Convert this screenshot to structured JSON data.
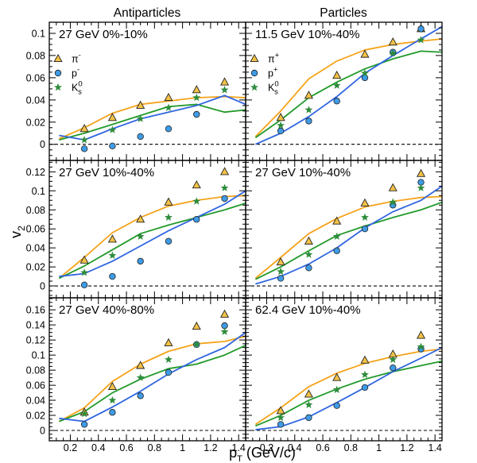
{
  "column_headers": [
    "Antiparticles",
    "Particles"
  ],
  "axis_titles": {
    "y": {
      "base": "v",
      "sub": "2"
    },
    "x": {
      "base": "p",
      "sub": "T",
      "rest": " (GeV/c)"
    }
  },
  "colors": {
    "triangle_fill": "#f3c246",
    "circle_fill": "#3e9be6",
    "star_fill": "#2e8c3c",
    "marker_stroke": "#222222",
    "zero_line": "#000000"
  },
  "chart_data": [
    {
      "type": "scatter",
      "title": "27 GeV 0%-10%",
      "xlim": [
        0.05,
        1.45
      ],
      "ylim": [
        -0.0145,
        0.11
      ],
      "yticks": [
        "0",
        "0.02",
        "0.04",
        "0.06",
        "0.08",
        "0.1"
      ],
      "legend": [
        {
          "marker": "triangle",
          "base": "π",
          "sup": "-"
        },
        {
          "marker": "circle",
          "base": "p",
          "sup": "-"
        },
        {
          "marker": "star",
          "base": "K",
          "sup": "0",
          "sub": "s"
        }
      ],
      "points": [
        {
          "marker": "triangle",
          "x": [
            0.3,
            0.5,
            0.7,
            0.9,
            1.1,
            1.3
          ],
          "y": [
            0.014,
            0.024,
            0.035,
            0.042,
            0.049,
            0.056
          ]
        },
        {
          "marker": "circle",
          "x": [
            0.3,
            0.5,
            0.7,
            0.9,
            1.1
          ],
          "y": [
            -0.004,
            -0.0015,
            0.007,
            0.014,
            0.027
          ]
        },
        {
          "marker": "star",
          "x": [
            0.3,
            0.5,
            0.7,
            0.9,
            1.1,
            1.3
          ],
          "y": [
            0.004,
            0.013,
            0.023,
            0.033,
            0.042,
            0.049
          ]
        }
      ],
      "curves": [
        {
          "color": "#f5a31a",
          "x": [
            0.12,
            0.3,
            0.5,
            0.7,
            0.9,
            1.1,
            1.3,
            1.45
          ],
          "y": [
            0.005,
            0.015,
            0.028,
            0.036,
            0.039,
            0.042,
            0.043,
            0.042
          ]
        },
        {
          "color": "#229a2a",
          "x": [
            0.12,
            0.3,
            0.5,
            0.7,
            0.9,
            1.1,
            1.3,
            1.45
          ],
          "y": [
            0.004,
            0.01,
            0.018,
            0.026,
            0.034,
            0.036,
            0.029,
            0.031
          ]
        },
        {
          "color": "#3066e0",
          "x": [
            0.12,
            0.3,
            0.5,
            0.7,
            0.9,
            1.1,
            1.3,
            1.45
          ],
          "y": [
            0.008,
            0.004,
            0.014,
            0.023,
            0.029,
            0.035,
            0.044,
            0.036
          ]
        }
      ]
    },
    {
      "type": "scatter",
      "title": "11.5 GeV 10%-40%",
      "xlim": [
        0.05,
        1.45
      ],
      "ylim": [
        -0.0145,
        0.11
      ],
      "legend": [
        {
          "marker": "triangle",
          "base": "π",
          "sup": "+"
        },
        {
          "marker": "circle",
          "base": "p",
          "sup": "+"
        },
        {
          "marker": "star",
          "base": "K",
          "sup": "0",
          "sub": "s"
        }
      ],
      "points": [
        {
          "marker": "triangle",
          "x": [
            0.3,
            0.5,
            0.7,
            0.9,
            1.1,
            1.3
          ],
          "y": [
            0.024,
            0.044,
            0.062,
            0.081,
            0.092,
            0.104
          ]
        },
        {
          "marker": "circle",
          "x": [
            0.3,
            0.5,
            0.7,
            0.9,
            1.1,
            1.3
          ],
          "y": [
            0.012,
            0.021,
            0.039,
            0.06,
            0.083,
            0.104
          ]
        },
        {
          "marker": "star",
          "x": [
            0.3,
            0.5,
            0.7,
            0.9,
            1.1,
            1.3
          ],
          "y": [
            0.017,
            0.031,
            0.053,
            0.064,
            0.082,
            0.094
          ]
        }
      ],
      "curves": [
        {
          "color": "#f5a31a",
          "x": [
            0.12,
            0.3,
            0.5,
            0.7,
            0.9,
            1.1,
            1.3,
            1.45
          ],
          "y": [
            0.007,
            0.03,
            0.059,
            0.075,
            0.085,
            0.09,
            0.093,
            0.095
          ]
        },
        {
          "color": "#229a2a",
          "x": [
            0.12,
            0.3,
            0.5,
            0.7,
            0.9,
            1.1,
            1.3,
            1.45
          ],
          "y": [
            0.006,
            0.022,
            0.042,
            0.056,
            0.068,
            0.077,
            0.084,
            0.083
          ]
        },
        {
          "color": "#3066e0",
          "x": [
            0.12,
            0.3,
            0.5,
            0.7,
            0.9,
            1.1,
            1.3,
            1.45
          ],
          "y": [
            0.0,
            0.01,
            0.025,
            0.043,
            0.064,
            0.08,
            0.095,
            0.106
          ]
        }
      ]
    },
    {
      "type": "scatter",
      "title": "27 GeV 10%-40%",
      "xlim": [
        0.05,
        1.45
      ],
      "ylim": [
        -0.0125,
        0.132
      ],
      "yticks": [
        "0",
        "0.02",
        "0.04",
        "0.06",
        "0.08",
        "0.1",
        "0.12"
      ],
      "points": [
        {
          "marker": "triangle",
          "x": [
            0.3,
            0.5,
            0.7,
            0.9,
            1.1,
            1.3
          ],
          "y": [
            0.027,
            0.049,
            0.07,
            0.088,
            0.106,
            0.12
          ]
        },
        {
          "marker": "circle",
          "x": [
            0.3,
            0.5,
            0.7,
            0.9,
            1.1,
            1.3
          ],
          "y": [
            0.001,
            0.01,
            0.026,
            0.047,
            0.07,
            0.092
          ]
        },
        {
          "marker": "star",
          "x": [
            0.3,
            0.5,
            0.7,
            0.9,
            1.1,
            1.3
          ],
          "y": [
            0.014,
            0.032,
            0.052,
            0.072,
            0.089,
            0.103
          ]
        }
      ],
      "curves": [
        {
          "color": "#f5a31a",
          "x": [
            0.12,
            0.3,
            0.5,
            0.7,
            0.9,
            1.1,
            1.3,
            1.45
          ],
          "y": [
            0.008,
            0.03,
            0.056,
            0.072,
            0.084,
            0.09,
            0.094,
            0.095
          ]
        },
        {
          "color": "#229a2a",
          "x": [
            0.12,
            0.3,
            0.5,
            0.7,
            0.9,
            1.1,
            1.3,
            1.45
          ],
          "y": [
            0.008,
            0.021,
            0.038,
            0.055,
            0.064,
            0.072,
            0.08,
            0.087
          ]
        },
        {
          "color": "#3066e0",
          "x": [
            0.12,
            0.3,
            0.5,
            0.7,
            0.9,
            1.1,
            1.3,
            1.45
          ],
          "y": [
            0.01,
            0.013,
            0.026,
            0.042,
            0.058,
            0.072,
            0.086,
            0.1
          ]
        }
      ]
    },
    {
      "type": "scatter",
      "title": "27 GeV 10%-40%",
      "xlim": [
        0.05,
        1.45
      ],
      "ylim": [
        -0.0125,
        0.132
      ],
      "points": [
        {
          "marker": "triangle",
          "x": [
            0.3,
            0.5,
            0.7,
            0.9,
            1.1,
            1.3
          ],
          "y": [
            0.025,
            0.047,
            0.068,
            0.087,
            0.103,
            0.118
          ]
        },
        {
          "marker": "circle",
          "x": [
            0.3,
            0.5,
            0.7,
            0.9,
            1.1,
            1.3
          ],
          "y": [
            0.008,
            0.019,
            0.037,
            0.06,
            0.085,
            0.109
          ]
        },
        {
          "marker": "star",
          "x": [
            0.3,
            0.5,
            0.7,
            0.9,
            1.1,
            1.3
          ],
          "y": [
            0.015,
            0.033,
            0.052,
            0.072,
            0.088,
            0.103
          ]
        }
      ],
      "curves": [
        {
          "color": "#f5a31a",
          "x": [
            0.12,
            0.3,
            0.5,
            0.7,
            0.9,
            1.1,
            1.3,
            1.45
          ],
          "y": [
            0.008,
            0.03,
            0.055,
            0.071,
            0.083,
            0.089,
            0.093,
            0.094
          ]
        },
        {
          "color": "#229a2a",
          "x": [
            0.12,
            0.3,
            0.5,
            0.7,
            0.9,
            1.1,
            1.3,
            1.45
          ],
          "y": [
            0.007,
            0.02,
            0.037,
            0.053,
            0.063,
            0.072,
            0.08,
            0.088
          ]
        },
        {
          "color": "#3066e0",
          "x": [
            0.12,
            0.3,
            0.5,
            0.7,
            0.9,
            1.1,
            1.3,
            1.45
          ],
          "y": [
            0.002,
            0.01,
            0.023,
            0.04,
            0.061,
            0.078,
            0.09,
            0.105
          ]
        }
      ]
    },
    {
      "type": "scatter",
      "title": "27 GeV 40%-80%",
      "xlim": [
        0.05,
        1.45
      ],
      "ylim": [
        -0.0137,
        0.176
      ],
      "yticks": [
        "0",
        "0.02",
        "0.04",
        "0.06",
        "0.08",
        "0.1",
        "0.12",
        "0.14",
        "0.16"
      ],
      "xticks": [
        "0.2",
        "0.4",
        "0.6",
        "0.8",
        "1",
        "1.2",
        "1.4"
      ],
      "points": [
        {
          "marker": "triangle",
          "x": [
            0.3,
            0.5,
            0.7,
            0.9,
            1.1,
            1.3
          ],
          "y": [
            0.024,
            0.058,
            0.086,
            0.116,
            0.138,
            0.154
          ]
        },
        {
          "marker": "circle",
          "x": [
            0.3,
            0.5,
            0.7,
            0.9,
            1.1,
            1.3
          ],
          "y": [
            0.008,
            0.024,
            0.046,
            0.077,
            0.114,
            0.139
          ]
        },
        {
          "marker": "star",
          "x": [
            0.3,
            0.5,
            0.7,
            0.9,
            1.1,
            1.3
          ],
          "y": [
            0.022,
            0.04,
            0.07,
            0.094,
            0.114,
            0.131
          ]
        }
      ],
      "curves": [
        {
          "color": "#f5a31a",
          "x": [
            0.12,
            0.3,
            0.5,
            0.7,
            0.9,
            1.1,
            1.3,
            1.45
          ],
          "y": [
            0.012,
            0.03,
            0.065,
            0.088,
            0.105,
            0.115,
            0.118,
            0.125
          ]
        },
        {
          "color": "#229a2a",
          "x": [
            0.12,
            0.3,
            0.5,
            0.7,
            0.9,
            1.1,
            1.3,
            1.45
          ],
          "y": [
            0.012,
            0.025,
            0.05,
            0.068,
            0.082,
            0.088,
            0.1,
            0.113
          ]
        },
        {
          "color": "#3066e0",
          "x": [
            0.12,
            0.3,
            0.5,
            0.7,
            0.9,
            1.1,
            1.3,
            1.45
          ],
          "y": [
            0.016,
            0.012,
            0.031,
            0.052,
            0.075,
            0.094,
            0.11,
            0.13
          ]
        }
      ]
    },
    {
      "type": "scatter",
      "title": "62.4 GeV 10%-40%",
      "xlim": [
        0.05,
        1.45
      ],
      "ylim": [
        -0.0137,
        0.176
      ],
      "xticks": [
        "0.2",
        "0.4",
        "0.6",
        "0.8",
        "1",
        "1.2",
        "1.4"
      ],
      "points": [
        {
          "marker": "triangle",
          "x": [
            0.3,
            0.5,
            0.7,
            0.9,
            1.1,
            1.3
          ],
          "y": [
            0.026,
            0.048,
            0.07,
            0.093,
            0.101,
            0.126
          ]
        },
        {
          "marker": "circle",
          "x": [
            0.3,
            0.5,
            0.7,
            0.9,
            1.1,
            1.3
          ],
          "y": [
            0.008,
            0.017,
            0.033,
            0.057,
            0.083,
            0.108
          ]
        },
        {
          "marker": "star",
          "x": [
            0.3,
            0.5,
            0.7,
            0.9,
            1.1,
            1.3
          ],
          "y": [
            0.017,
            0.034,
            0.054,
            0.074,
            0.094,
            0.111
          ]
        }
      ],
      "curves": [
        {
          "color": "#f5a31a",
          "x": [
            0.12,
            0.3,
            0.5,
            0.7,
            0.9,
            1.1,
            1.3,
            1.45
          ],
          "y": [
            0.008,
            0.03,
            0.058,
            0.076,
            0.089,
            0.098,
            0.105,
            0.108
          ]
        },
        {
          "color": "#229a2a",
          "x": [
            0.12,
            0.3,
            0.5,
            0.7,
            0.9,
            1.1,
            1.3,
            1.45
          ],
          "y": [
            0.006,
            0.02,
            0.04,
            0.055,
            0.068,
            0.078,
            0.086,
            0.092
          ]
        },
        {
          "color": "#3066e0",
          "x": [
            0.12,
            0.3,
            0.5,
            0.7,
            0.9,
            1.1,
            1.3,
            1.45
          ],
          "y": [
            0.001,
            0.005,
            0.018,
            0.037,
            0.057,
            0.078,
            0.096,
            0.11
          ]
        }
      ]
    }
  ]
}
